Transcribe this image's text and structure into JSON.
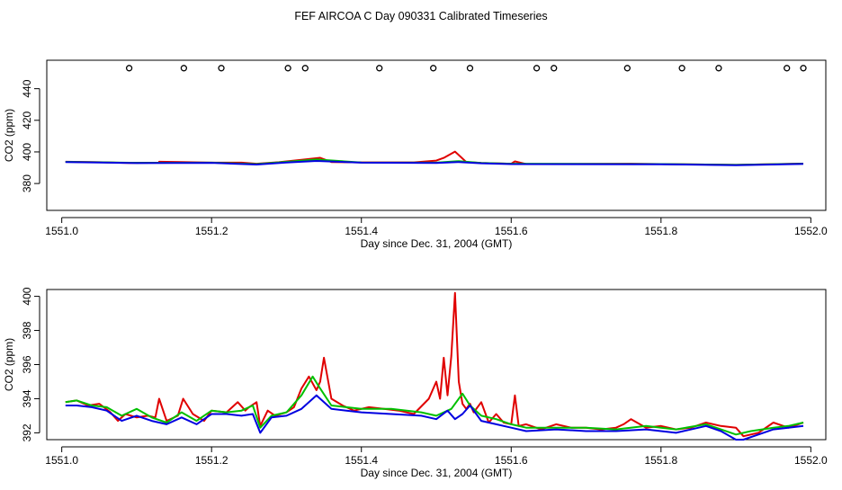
{
  "figure": {
    "title": "FEF AIRCOA C  Day 090331  Calibrated Timeseries"
  },
  "colors": {
    "series_red": "#e00000",
    "series_green": "#00c000",
    "series_blue": "#0000e0",
    "frame": "#000000"
  },
  "chart_data": [
    {
      "type": "line",
      "panel": "top",
      "title": "FEF AIRCOA C  Day 090331  Calibrated Timeseries",
      "xlabel": "Day since Dec. 31, 2004 (GMT)",
      "ylabel": "CO2 (ppm)",
      "xlim": [
        1550.98,
        1552.02
      ],
      "ylim": [
        363,
        458
      ],
      "xticks": [
        "1551.0",
        "1551.2",
        "1551.4",
        "1551.6",
        "1551.8",
        "1552.0"
      ],
      "yticks": [
        "380",
        "400",
        "420",
        "440"
      ],
      "grid": false,
      "markers": {
        "symbol": "open-circle",
        "y": 453,
        "x": [
          1551.09,
          1551.163,
          1551.213,
          1551.302,
          1551.325,
          1551.424,
          1551.496,
          1551.545,
          1551.634,
          1551.657,
          1551.755,
          1551.828,
          1551.877,
          1551.968,
          1551.99
        ]
      },
      "series": [
        {
          "color": "red",
          "x": [
            1551.005,
            1551.05,
            1551.09,
            1551.13,
            1551.13,
            1551.16,
            1551.2,
            1551.24,
            1551.26,
            1551.29,
            1551.32,
            1551.345,
            1551.36,
            1551.4,
            1551.47,
            1551.5,
            1551.51,
            1551.525,
            1551.54,
            1551.56,
            1551.6,
            1551.605,
            1551.62,
            1551.76,
            1551.8,
            1551.9,
            1551.99
          ],
          "y": [
            393.8,
            393.5,
            393.0,
            393.2,
            393.8,
            393.6,
            393.2,
            393.2,
            392.5,
            393.5,
            395.0,
            396.3,
            393.6,
            393.4,
            393.4,
            394.5,
            396.2,
            400.2,
            393.6,
            393.0,
            392.5,
            394.0,
            392.3,
            392.5,
            392.3,
            391.8,
            392.6
          ]
        },
        {
          "color": "green",
          "x": [
            1551.005,
            1551.1,
            1551.2,
            1551.26,
            1551.3,
            1551.34,
            1551.4,
            1551.5,
            1551.53,
            1551.56,
            1551.6,
            1551.8,
            1551.9,
            1551.99
          ],
          "y": [
            393.7,
            393.1,
            393.2,
            392.3,
            393.7,
            395.2,
            393.3,
            393.2,
            394.2,
            393.0,
            392.5,
            392.3,
            391.8,
            392.5
          ]
        },
        {
          "color": "blue",
          "x": [
            1551.005,
            1551.1,
            1551.2,
            1551.26,
            1551.3,
            1551.34,
            1551.4,
            1551.5,
            1551.53,
            1551.56,
            1551.6,
            1551.8,
            1551.9,
            1551.99
          ],
          "y": [
            393.6,
            392.9,
            393.1,
            392.0,
            393.3,
            394.3,
            393.2,
            393.0,
            393.6,
            392.8,
            392.3,
            392.2,
            391.6,
            392.4
          ]
        }
      ]
    },
    {
      "type": "line",
      "panel": "bottom",
      "xlabel": "Day since Dec. 31, 2004 (GMT)",
      "ylabel": "CO2 (ppm)",
      "xlim": [
        1550.98,
        1552.02
      ],
      "ylim": [
        391.6,
        400.4
      ],
      "xticks": [
        "1551.0",
        "1551.2",
        "1551.4",
        "1551.6",
        "1551.8",
        "1552.0"
      ],
      "yticks": [
        "392",
        "394",
        "396",
        "398",
        "400"
      ],
      "grid": false,
      "series": [
        {
          "color": "red",
          "x": [
            1551.005,
            1551.02,
            1551.035,
            1551.05,
            1551.065,
            1551.075,
            1551.085,
            1551.1,
            1551.115,
            1551.125,
            1551.13,
            1551.14,
            1551.155,
            1551.162,
            1551.175,
            1551.19,
            1551.2,
            1551.22,
            1551.235,
            1551.245,
            1551.25,
            1551.26,
            1551.265,
            1551.275,
            1551.285,
            1551.3,
            1551.31,
            1551.32,
            1551.33,
            1551.34,
            1551.345,
            1551.35,
            1551.36,
            1551.375,
            1551.39,
            1551.41,
            1551.43,
            1551.45,
            1551.47,
            1551.49,
            1551.5,
            1551.505,
            1551.51,
            1551.515,
            1551.52,
            1551.525,
            1551.53,
            1551.535,
            1551.54,
            1551.545,
            1551.55,
            1551.56,
            1551.57,
            1551.58,
            1551.59,
            1551.6,
            1551.605,
            1551.61,
            1551.62,
            1551.64,
            1551.66,
            1551.68,
            1551.7,
            1551.72,
            1551.74,
            1551.75,
            1551.76,
            1551.78,
            1551.8,
            1551.82,
            1551.84,
            1551.86,
            1551.88,
            1551.9,
            1551.91,
            1551.93,
            1551.95,
            1551.97,
            1551.99
          ],
          "y": [
            393.8,
            393.9,
            393.6,
            393.7,
            393.2,
            392.7,
            393.1,
            392.9,
            393.0,
            392.9,
            394.0,
            392.7,
            393.0,
            394.0,
            393.1,
            392.7,
            393.3,
            393.2,
            393.8,
            393.3,
            393.5,
            393.8,
            392.4,
            393.3,
            393.0,
            393.2,
            393.5,
            394.6,
            395.3,
            394.5,
            395.0,
            396.4,
            394.0,
            393.6,
            393.3,
            393.5,
            393.4,
            393.3,
            393.1,
            394.0,
            395.0,
            394.0,
            396.4,
            394.2,
            396.5,
            400.2,
            395.0,
            393.7,
            393.4,
            393.7,
            393.2,
            393.8,
            392.6,
            393.1,
            392.6,
            392.5,
            394.2,
            392.4,
            392.5,
            392.2,
            392.5,
            392.3,
            392.3,
            392.2,
            392.3,
            392.5,
            392.8,
            392.3,
            392.4,
            392.2,
            392.3,
            392.6,
            392.4,
            392.3,
            391.8,
            392.0,
            392.6,
            392.3,
            392.6
          ]
        },
        {
          "color": "green",
          "x": [
            1551.005,
            1551.02,
            1551.04,
            1551.06,
            1551.08,
            1551.1,
            1551.12,
            1551.14,
            1551.16,
            1551.18,
            1551.2,
            1551.22,
            1551.24,
            1551.255,
            1551.265,
            1551.28,
            1551.3,
            1551.32,
            1551.335,
            1551.345,
            1551.36,
            1551.38,
            1551.4,
            1551.44,
            1551.48,
            1551.5,
            1551.52,
            1551.535,
            1551.545,
            1551.56,
            1551.58,
            1551.6,
            1551.62,
            1551.66,
            1551.7,
            1551.74,
            1551.78,
            1551.8,
            1551.82,
            1551.86,
            1551.88,
            1551.9,
            1551.92,
            1551.95,
            1551.97,
            1551.99
          ],
          "y": [
            393.8,
            393.9,
            393.6,
            393.5,
            393.0,
            393.4,
            392.9,
            392.6,
            393.2,
            392.7,
            393.3,
            393.2,
            393.3,
            393.6,
            392.3,
            393.0,
            393.2,
            394.2,
            395.3,
            394.6,
            393.6,
            393.5,
            393.4,
            393.4,
            393.2,
            393.0,
            393.4,
            394.3,
            393.6,
            393.0,
            392.8,
            392.5,
            392.3,
            392.3,
            392.3,
            392.2,
            392.4,
            392.3,
            392.2,
            392.5,
            392.2,
            391.9,
            392.1,
            392.3,
            392.4,
            392.6
          ]
        },
        {
          "color": "blue",
          "x": [
            1551.005,
            1551.02,
            1551.04,
            1551.06,
            1551.08,
            1551.1,
            1551.12,
            1551.14,
            1551.16,
            1551.18,
            1551.2,
            1551.22,
            1551.24,
            1551.255,
            1551.265,
            1551.28,
            1551.3,
            1551.32,
            1551.34,
            1551.36,
            1551.38,
            1551.4,
            1551.44,
            1551.48,
            1551.5,
            1551.515,
            1551.525,
            1551.535,
            1551.545,
            1551.56,
            1551.58,
            1551.6,
            1551.62,
            1551.66,
            1551.7,
            1551.74,
            1551.78,
            1551.8,
            1551.82,
            1551.86,
            1551.88,
            1551.9,
            1551.91,
            1551.93,
            1551.95,
            1551.97,
            1551.99
          ],
          "y": [
            393.6,
            393.6,
            393.5,
            393.3,
            392.7,
            393.0,
            392.7,
            392.5,
            392.9,
            392.5,
            393.1,
            393.1,
            393.0,
            393.1,
            392.0,
            392.9,
            393.0,
            393.4,
            394.2,
            393.4,
            393.3,
            393.2,
            393.1,
            393.0,
            392.8,
            393.3,
            392.8,
            393.1,
            393.6,
            392.7,
            392.5,
            392.3,
            392.1,
            392.2,
            392.1,
            392.1,
            392.2,
            392.1,
            392.0,
            392.4,
            392.1,
            391.6,
            391.6,
            391.9,
            392.2,
            392.3,
            392.4
          ]
        }
      ]
    }
  ]
}
